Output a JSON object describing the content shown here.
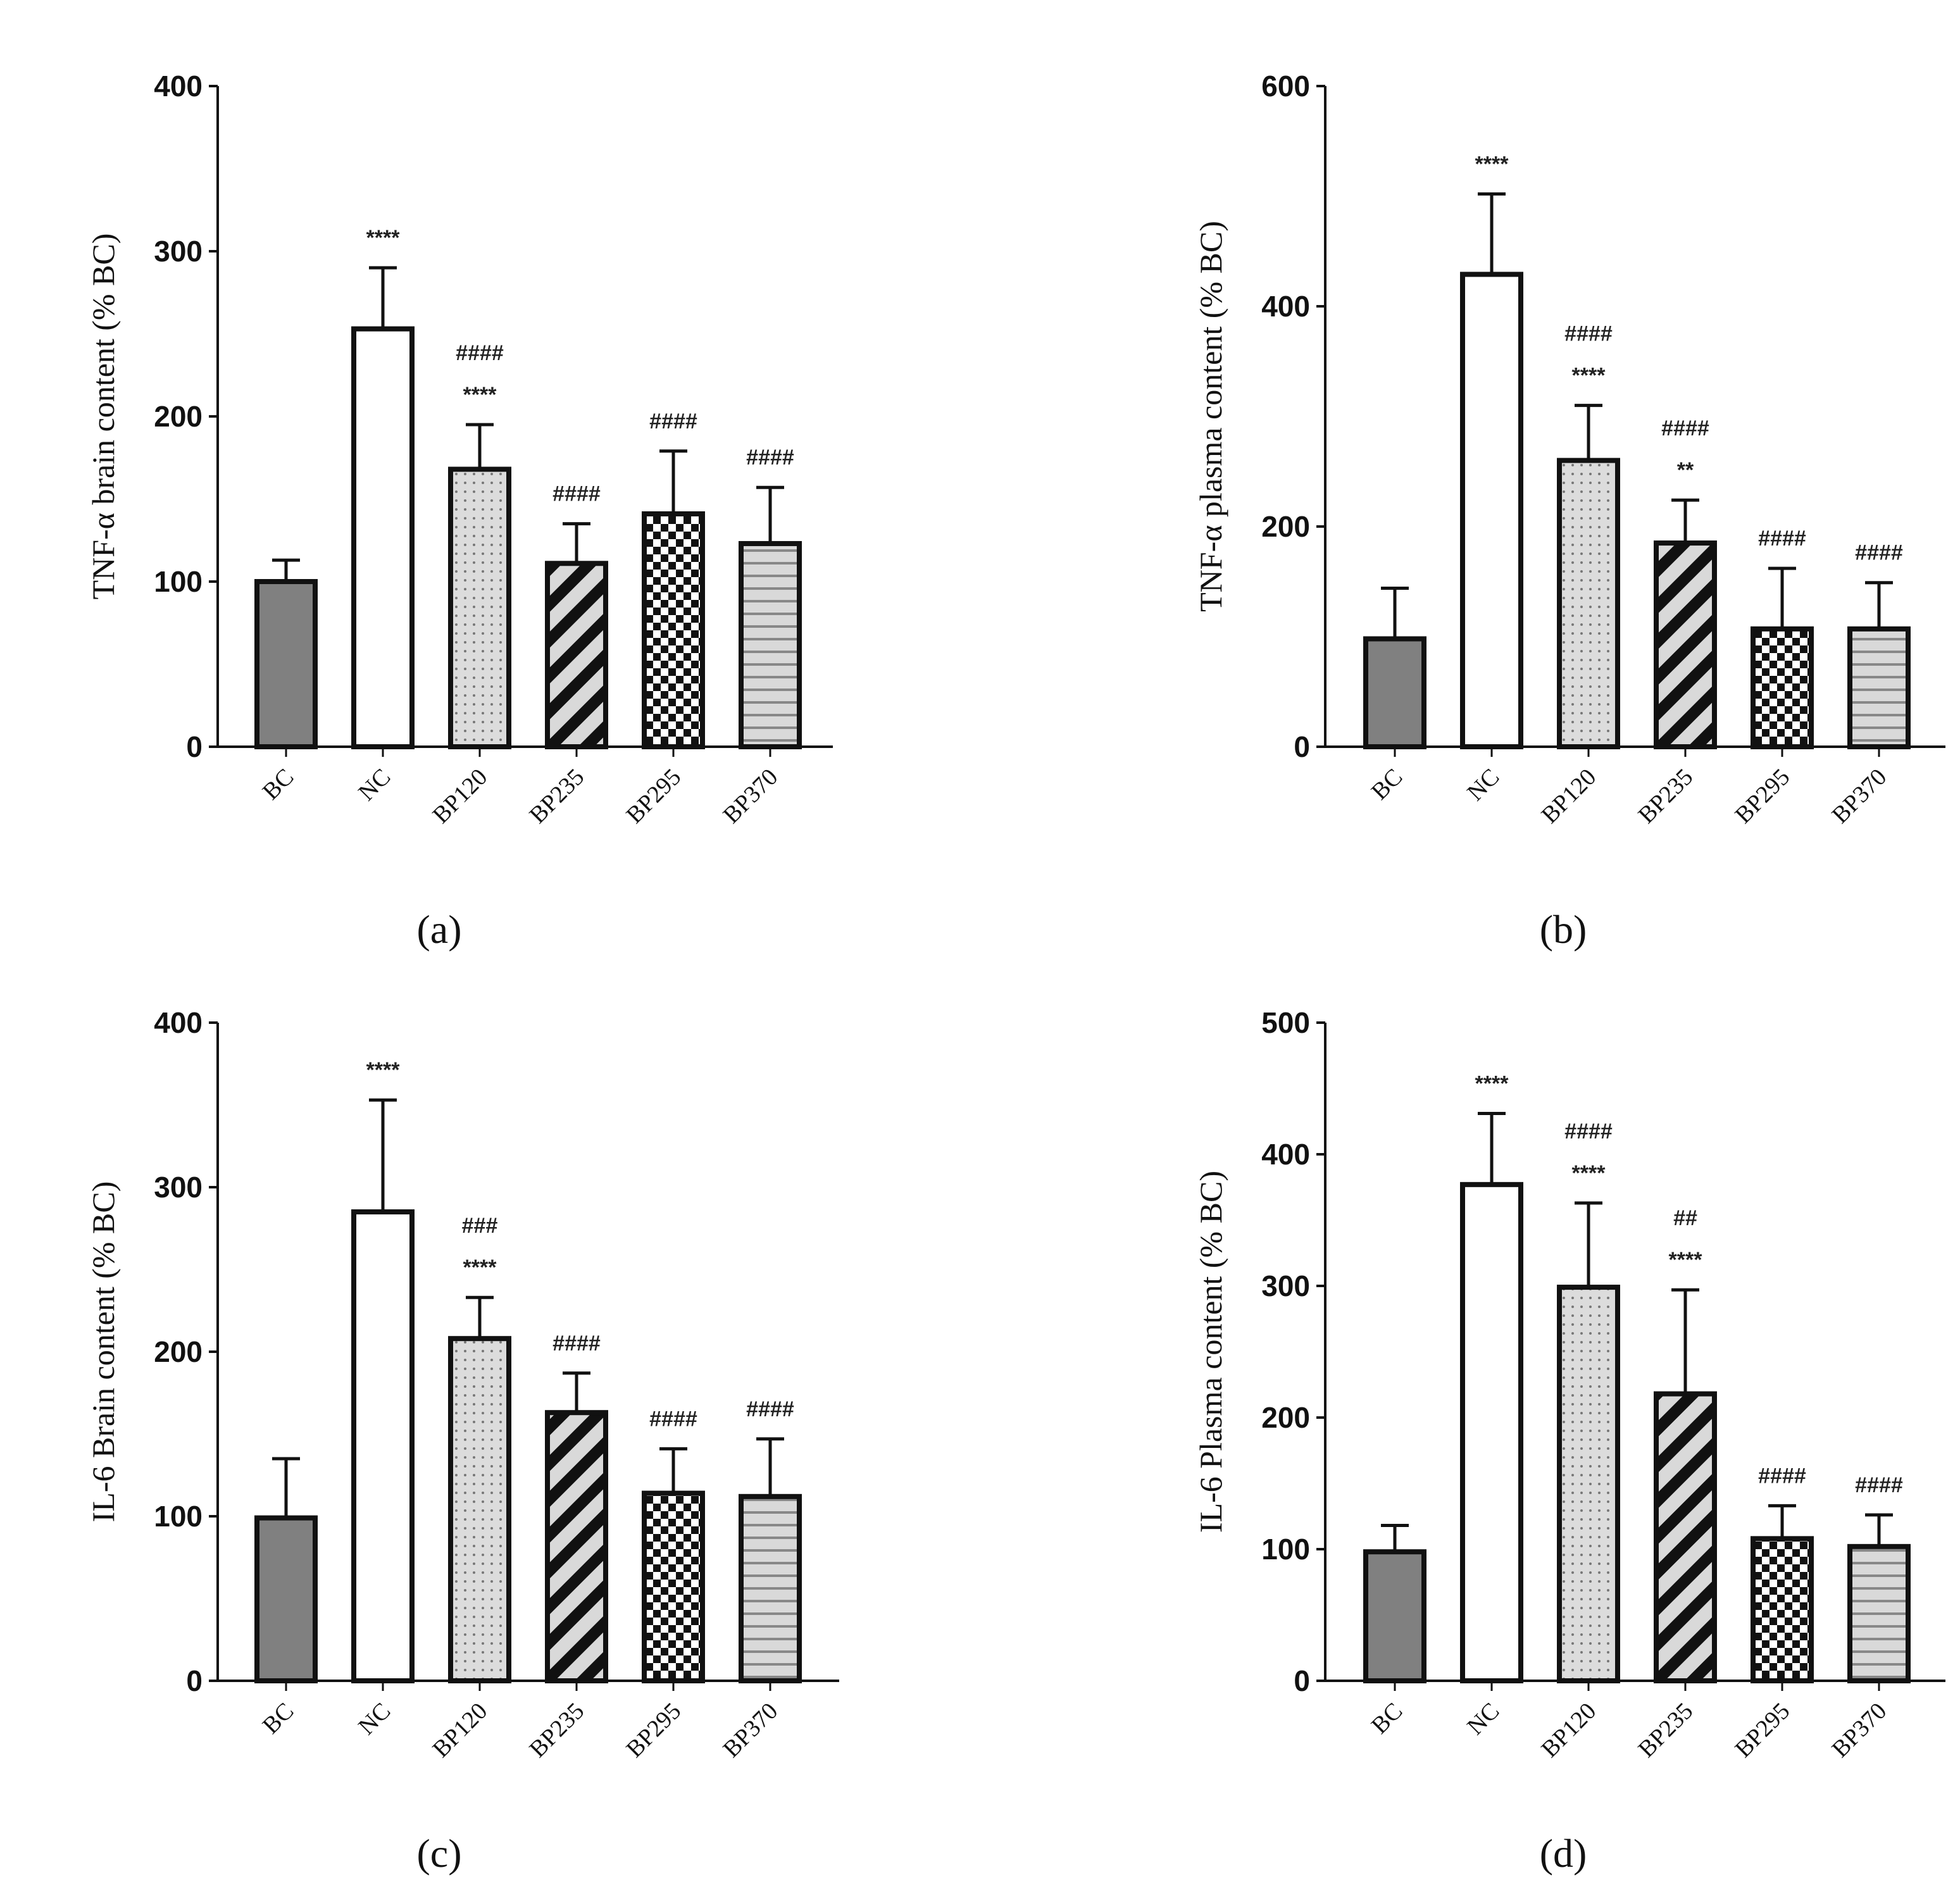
{
  "chart_data": [
    {
      "type": "bar",
      "panel": "(a)",
      "ylabel": "TNF-α brain content (% BC)",
      "ylim": [
        0,
        400
      ],
      "yticks": [
        0,
        100,
        200,
        300,
        400
      ],
      "categories": [
        "BC",
        "NC",
        "BP120",
        "BP235",
        "BP295",
        "BP370"
      ],
      "values": [
        100,
        253,
        168,
        111,
        141,
        123
      ],
      "error_upper": [
        113,
        290,
        195,
        135,
        179,
        157
      ],
      "annotations": [
        [],
        [
          "****"
        ],
        [
          "####",
          "****"
        ],
        [
          "####"
        ],
        [
          "####"
        ],
        [
          "####"
        ]
      ]
    },
    {
      "type": "bar",
      "panel": "(b)",
      "ylabel": "TNF-α plasma content (% BC)",
      "ylim": [
        0,
        600
      ],
      "yticks": [
        0,
        200,
        400,
        600
      ],
      "categories": [
        "BC",
        "NC",
        "BP120",
        "BP235",
        "BP295",
        "BP370"
      ],
      "values": [
        98,
        429,
        260,
        185,
        107,
        107
      ],
      "error_upper": [
        144,
        502,
        310,
        224,
        162,
        149
      ],
      "annotations": [
        [],
        [
          "****"
        ],
        [
          "####",
          "****"
        ],
        [
          "####",
          "**"
        ],
        [
          "####"
        ],
        [
          "####"
        ]
      ]
    },
    {
      "type": "bar",
      "panel": "(c)",
      "ylabel": "IL-6 Brain content (% BC)",
      "ylim": [
        0,
        400
      ],
      "yticks": [
        0,
        100,
        200,
        300,
        400
      ],
      "categories": [
        "BC",
        "NC",
        "BP120",
        "BP235",
        "BP295",
        "BP370"
      ],
      "values": [
        99,
        285,
        208,
        163,
        114,
        112
      ],
      "error_upper": [
        135,
        353,
        233,
        187,
        141,
        147
      ],
      "annotations": [
        [],
        [
          "****"
        ],
        [
          "###",
          "****"
        ],
        [
          "####"
        ],
        [
          "####"
        ],
        [
          "####"
        ]
      ]
    },
    {
      "type": "bar",
      "panel": "(d)",
      "ylabel": "IL-6 Plasma content (% BC)",
      "ylim": [
        0,
        500
      ],
      "yticks": [
        0,
        100,
        200,
        300,
        400,
        500
      ],
      "categories": [
        "BC",
        "NC",
        "BP120",
        "BP235",
        "BP295",
        "BP370"
      ],
      "values": [
        98,
        377,
        299,
        218,
        108,
        102
      ],
      "error_upper": [
        118,
        431,
        363,
        297,
        133,
        126
      ],
      "annotations": [
        [],
        [
          "****"
        ],
        [
          "####",
          "****"
        ],
        [
          "##",
          "****"
        ],
        [
          "####"
        ],
        [
          "####"
        ]
      ]
    }
  ],
  "colors": {
    "bc_fill": "#808080",
    "nc_fill": "#ffffff",
    "pattern_bg": "#d9d9d9",
    "stroke": "#111111"
  }
}
